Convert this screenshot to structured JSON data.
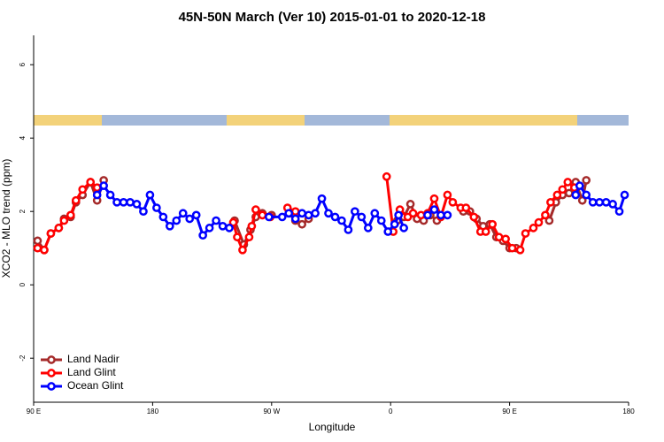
{
  "chart_data": {
    "type": "line",
    "title": "45N-50N March (Ver 10)   2015-01-01 to 2020-12-18",
    "x_label": "Longitude",
    "y_label": "XCO2 - MLO trend (ppm)",
    "xlim": [
      90,
      540
    ],
    "ylim": [
      -3.2,
      6.8
    ],
    "xticks": [
      {
        "value": 90,
        "label": "90 E"
      },
      {
        "value": 180,
        "label": "180"
      },
      {
        "value": 270,
        "label": "90 W"
      },
      {
        "value": 360,
        "label": "0"
      },
      {
        "value": 450,
        "label": "90 E"
      },
      {
        "value": 540,
        "label": "180"
      }
    ],
    "yticks": [
      -2,
      0,
      2,
      4,
      6
    ],
    "legend": "bottom-left",
    "series": [
      {
        "name": "Land Nadir",
        "color": "#a52a2a",
        "x": [
          93,
          98,
          103,
          109,
          113,
          118,
          122,
          127,
          133,
          138,
          143,
          242,
          249,
          254,
          258,
          263,
          270,
          283,
          288,
          293,
          298,
          365,
          370,
          375,
          380,
          385,
          390,
          395,
          415,
          420,
          425,
          430,
          435,
          440,
          445,
          450,
          455,
          480,
          485,
          490,
          495,
          500,
          505,
          508
        ],
        "values": [
          1.2,
          0.95,
          1.4,
          1.55,
          1.8,
          1.85,
          2.25,
          2.45,
          2.8,
          2.3,
          2.85,
          1.75,
          1.1,
          1.5,
          1.85,
          1.95,
          1.9,
          1.95,
          1.75,
          1.65,
          1.8,
          1.75,
          1.85,
          2.2,
          1.8,
          1.75,
          1.9,
          1.75,
          2.0,
          2.0,
          1.8,
          1.6,
          1.65,
          1.3,
          1.2,
          1.0,
          1.0,
          1.75,
          2.25,
          2.45,
          2.5,
          2.8,
          2.3,
          2.85
        ]
      },
      {
        "name": "Land Glint",
        "color": "#ff0000",
        "x": [
          93,
          98,
          103,
          109,
          113,
          118,
          122,
          127,
          133,
          138,
          241,
          244,
          248,
          253,
          255,
          258,
          263,
          269,
          282,
          288,
          357,
          362,
          367,
          373,
          377,
          383,
          388,
          393,
          398,
          403,
          407,
          413,
          417,
          423,
          428,
          432,
          437,
          442,
          447,
          452,
          458,
          462,
          468,
          472,
          477,
          481,
          486,
          490,
          494,
          499
        ],
        "values": [
          1.0,
          0.95,
          1.4,
          1.55,
          1.75,
          1.9,
          2.3,
          2.6,
          2.8,
          2.65,
          1.7,
          1.3,
          0.95,
          1.3,
          1.6,
          2.05,
          1.9,
          1.85,
          2.1,
          2.0,
          2.95,
          1.45,
          2.05,
          1.85,
          1.95,
          1.9,
          1.95,
          2.35,
          1.85,
          2.45,
          2.25,
          2.1,
          2.1,
          1.85,
          1.45,
          1.45,
          1.65,
          1.3,
          1.25,
          1.0,
          0.95,
          1.4,
          1.55,
          1.7,
          1.9,
          2.25,
          2.45,
          2.6,
          2.8,
          2.65
        ]
      },
      {
        "name": "Ocean Glint",
        "color": "#0000ff",
        "x": [
          138,
          143,
          148,
          153,
          158,
          163,
          168,
          173,
          178,
          183,
          188,
          193,
          198,
          203,
          208,
          213,
          218,
          223,
          228,
          233,
          238,
          268,
          278,
          283,
          288,
          293,
          298,
          303,
          308,
          313,
          318,
          323,
          328,
          333,
          338,
          343,
          348,
          353,
          358,
          363,
          366,
          370,
          388,
          393,
          398,
          403,
          500,
          503,
          508,
          513,
          518,
          523,
          528,
          533,
          537
        ],
        "values": [
          2.45,
          2.7,
          2.45,
          2.25,
          2.25,
          2.25,
          2.2,
          2.0,
          2.45,
          2.1,
          1.85,
          1.6,
          1.75,
          1.95,
          1.8,
          1.9,
          1.35,
          1.55,
          1.75,
          1.6,
          1.55,
          1.85,
          1.85,
          1.95,
          1.8,
          1.95,
          1.9,
          1.95,
          2.35,
          1.95,
          1.85,
          1.75,
          1.5,
          2.0,
          1.85,
          1.55,
          1.95,
          1.75,
          1.45,
          1.65,
          1.9,
          1.55,
          1.9,
          2.05,
          1.9,
          1.9,
          2.45,
          2.7,
          2.45,
          2.25,
          2.25,
          2.25,
          2.2,
          2.0,
          2.45
        ]
      }
    ]
  }
}
